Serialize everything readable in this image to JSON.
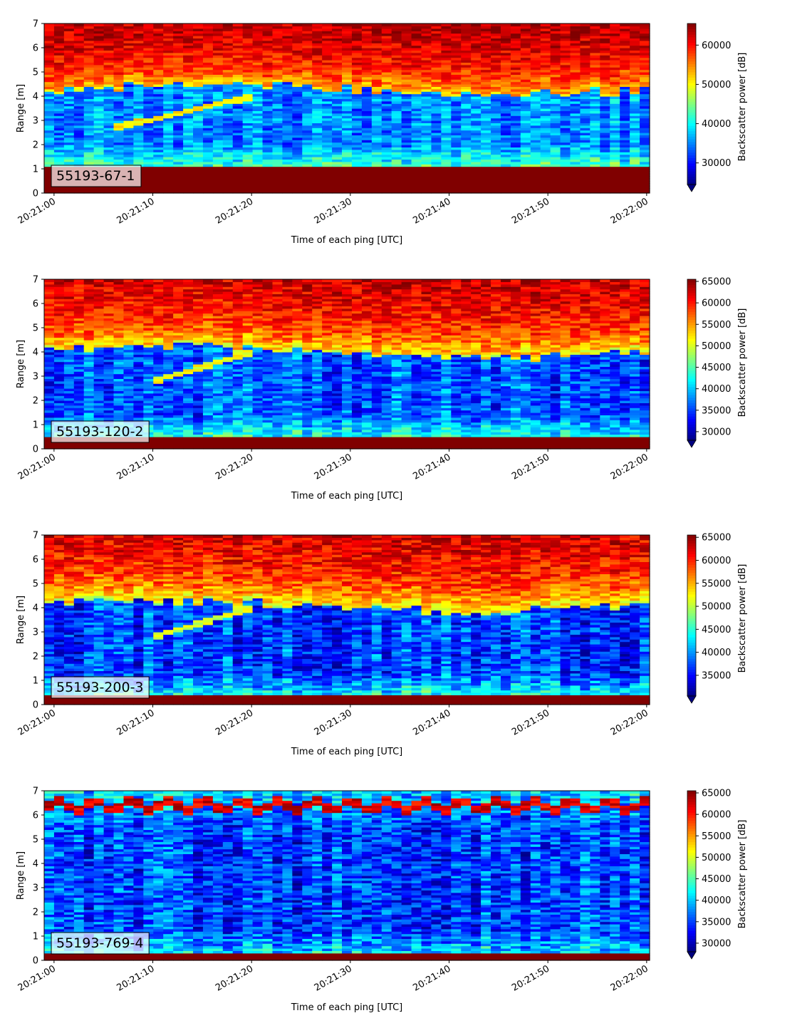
{
  "chart_data": [
    {
      "type": "heatmap",
      "label": "55193-67-1",
      "xlabel": "Time of each ping [UTC]",
      "ylabel": "Range [m]",
      "x_ticks": [
        "20:21:00",
        "20:21:10",
        "20:21:20",
        "20:21:30",
        "20:21:40",
        "20:21:50",
        "20:22:00"
      ],
      "xlim_seconds": [
        -1,
        60.3
      ],
      "ylim": [
        0,
        7
      ],
      "y_ticks": [
        0,
        1,
        2,
        3,
        4,
        5,
        6,
        7
      ],
      "colorbar": {
        "label": "Backscatter power [dB]",
        "colormap": "jet",
        "vmin": 24500,
        "vmax": 65500,
        "ticks": [
          30000,
          40000,
          50000,
          60000
        ],
        "extend": "min"
      },
      "features": {
        "near_field_top": 1.15,
        "upper_edge": [
          4.3,
          4.6,
          4.3,
          4.0,
          4.3
        ],
        "target_track": {
          "t0": 6,
          "r0": 2.7,
          "t1": 20,
          "r1": 4.0
        },
        "noise_level": 35000,
        "top_level": 60000
      }
    },
    {
      "type": "heatmap",
      "label": "55193-120-2",
      "xlabel": "Time of each ping [UTC]",
      "ylabel": "Range [m]",
      "x_ticks": [
        "20:21:00",
        "20:21:10",
        "20:21:20",
        "20:21:30",
        "20:21:40",
        "20:21:50",
        "20:22:00"
      ],
      "xlim_seconds": [
        -1,
        60.3
      ],
      "ylim": [
        0,
        7
      ],
      "y_ticks": [
        0,
        1,
        2,
        3,
        4,
        5,
        6,
        7
      ],
      "colorbar": {
        "label": "Backscatter power [dB]",
        "colormap": "jet",
        "vmin": 28000,
        "vmax": 65500,
        "ticks": [
          30000,
          35000,
          40000,
          45000,
          50000,
          55000,
          60000,
          65000
        ],
        "extend": "min"
      },
      "features": {
        "near_field_top": 0.55,
        "upper_edge": [
          4.1,
          4.2,
          4.0,
          3.7,
          4.1
        ],
        "target_track": {
          "t0": 10,
          "r0": 2.8,
          "t1": 20,
          "r1": 4.0
        },
        "noise_level": 36000,
        "top_level": 59000
      }
    },
    {
      "type": "heatmap",
      "label": "55193-200-3",
      "xlabel": "Time of each ping [UTC]",
      "ylabel": "Range [m]",
      "x_ticks": [
        "20:21:00",
        "20:21:10",
        "20:21:20",
        "20:21:30",
        "20:21:40",
        "20:21:50",
        "20:22:00"
      ],
      "xlim_seconds": [
        -1,
        60.3
      ],
      "ylim": [
        0,
        7
      ],
      "y_ticks": [
        0,
        1,
        2,
        3,
        4,
        5,
        6,
        7
      ],
      "colorbar": {
        "label": "Backscatter power [dB]",
        "colormap": "jet",
        "vmin": 30500,
        "vmax": 65500,
        "ticks": [
          35000,
          40000,
          45000,
          50000,
          55000,
          60000,
          65000
        ],
        "extend": "min"
      },
      "features": {
        "near_field_top": 0.4,
        "upper_edge": [
          4.2,
          4.3,
          4.0,
          3.8,
          4.1
        ],
        "target_track": {
          "t0": 10,
          "r0": 2.8,
          "t1": 20,
          "r1": 4.0
        },
        "noise_level": 37000,
        "top_level": 59000
      }
    },
    {
      "type": "heatmap",
      "label": "55193-769-4",
      "xlabel": "Time of each ping [UTC]",
      "ylabel": "Range [m]",
      "x_ticks": [
        "20:21:00",
        "20:21:10",
        "20:21:20",
        "20:21:30",
        "20:21:40",
        "20:21:50",
        "20:22:00"
      ],
      "xlim_seconds": [
        -1,
        60.3
      ],
      "ylim": [
        0,
        7
      ],
      "y_ticks": [
        0,
        1,
        2,
        3,
        4,
        5,
        6,
        7
      ],
      "colorbar": {
        "label": "Backscatter power [dB]",
        "colormap": "jet",
        "vmin": 28000,
        "vmax": 65500,
        "ticks": [
          30000,
          35000,
          40000,
          45000,
          50000,
          55000,
          60000,
          65000
        ],
        "extend": "min"
      },
      "features": {
        "near_field_top": 0.35,
        "surface_band": 6.4,
        "noise_level": 35000,
        "top_level": 42000
      }
    }
  ]
}
